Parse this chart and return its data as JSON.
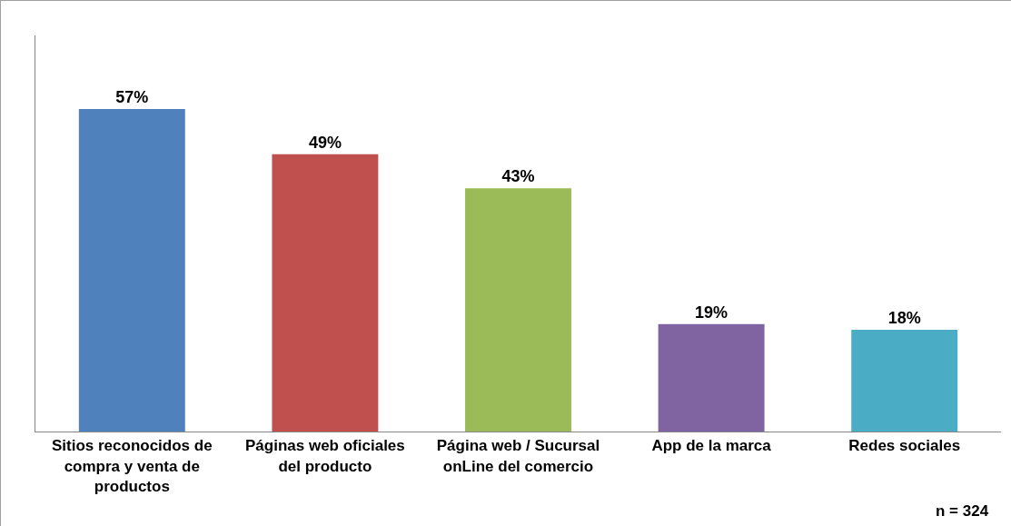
{
  "chart_data": {
    "type": "bar",
    "categories": [
      "Sitios reconocidos de compra y venta de productos",
      "Páginas web oficiales del producto",
      "Página web / Sucursal onLine del comercio",
      "App de la marca",
      "Redes sociales"
    ],
    "values": [
      57,
      49,
      43,
      19,
      18
    ],
    "colors": [
      "#4f81bd",
      "#c0504d",
      "#9bbb59",
      "#8064a2",
      "#4bacc6"
    ],
    "value_labels": [
      "57%",
      "49%",
      "43%",
      "19%",
      "18%"
    ],
    "ylim": [
      0,
      70
    ],
    "tick_labels": "x",
    "annotations": [
      "n = 324"
    ]
  }
}
